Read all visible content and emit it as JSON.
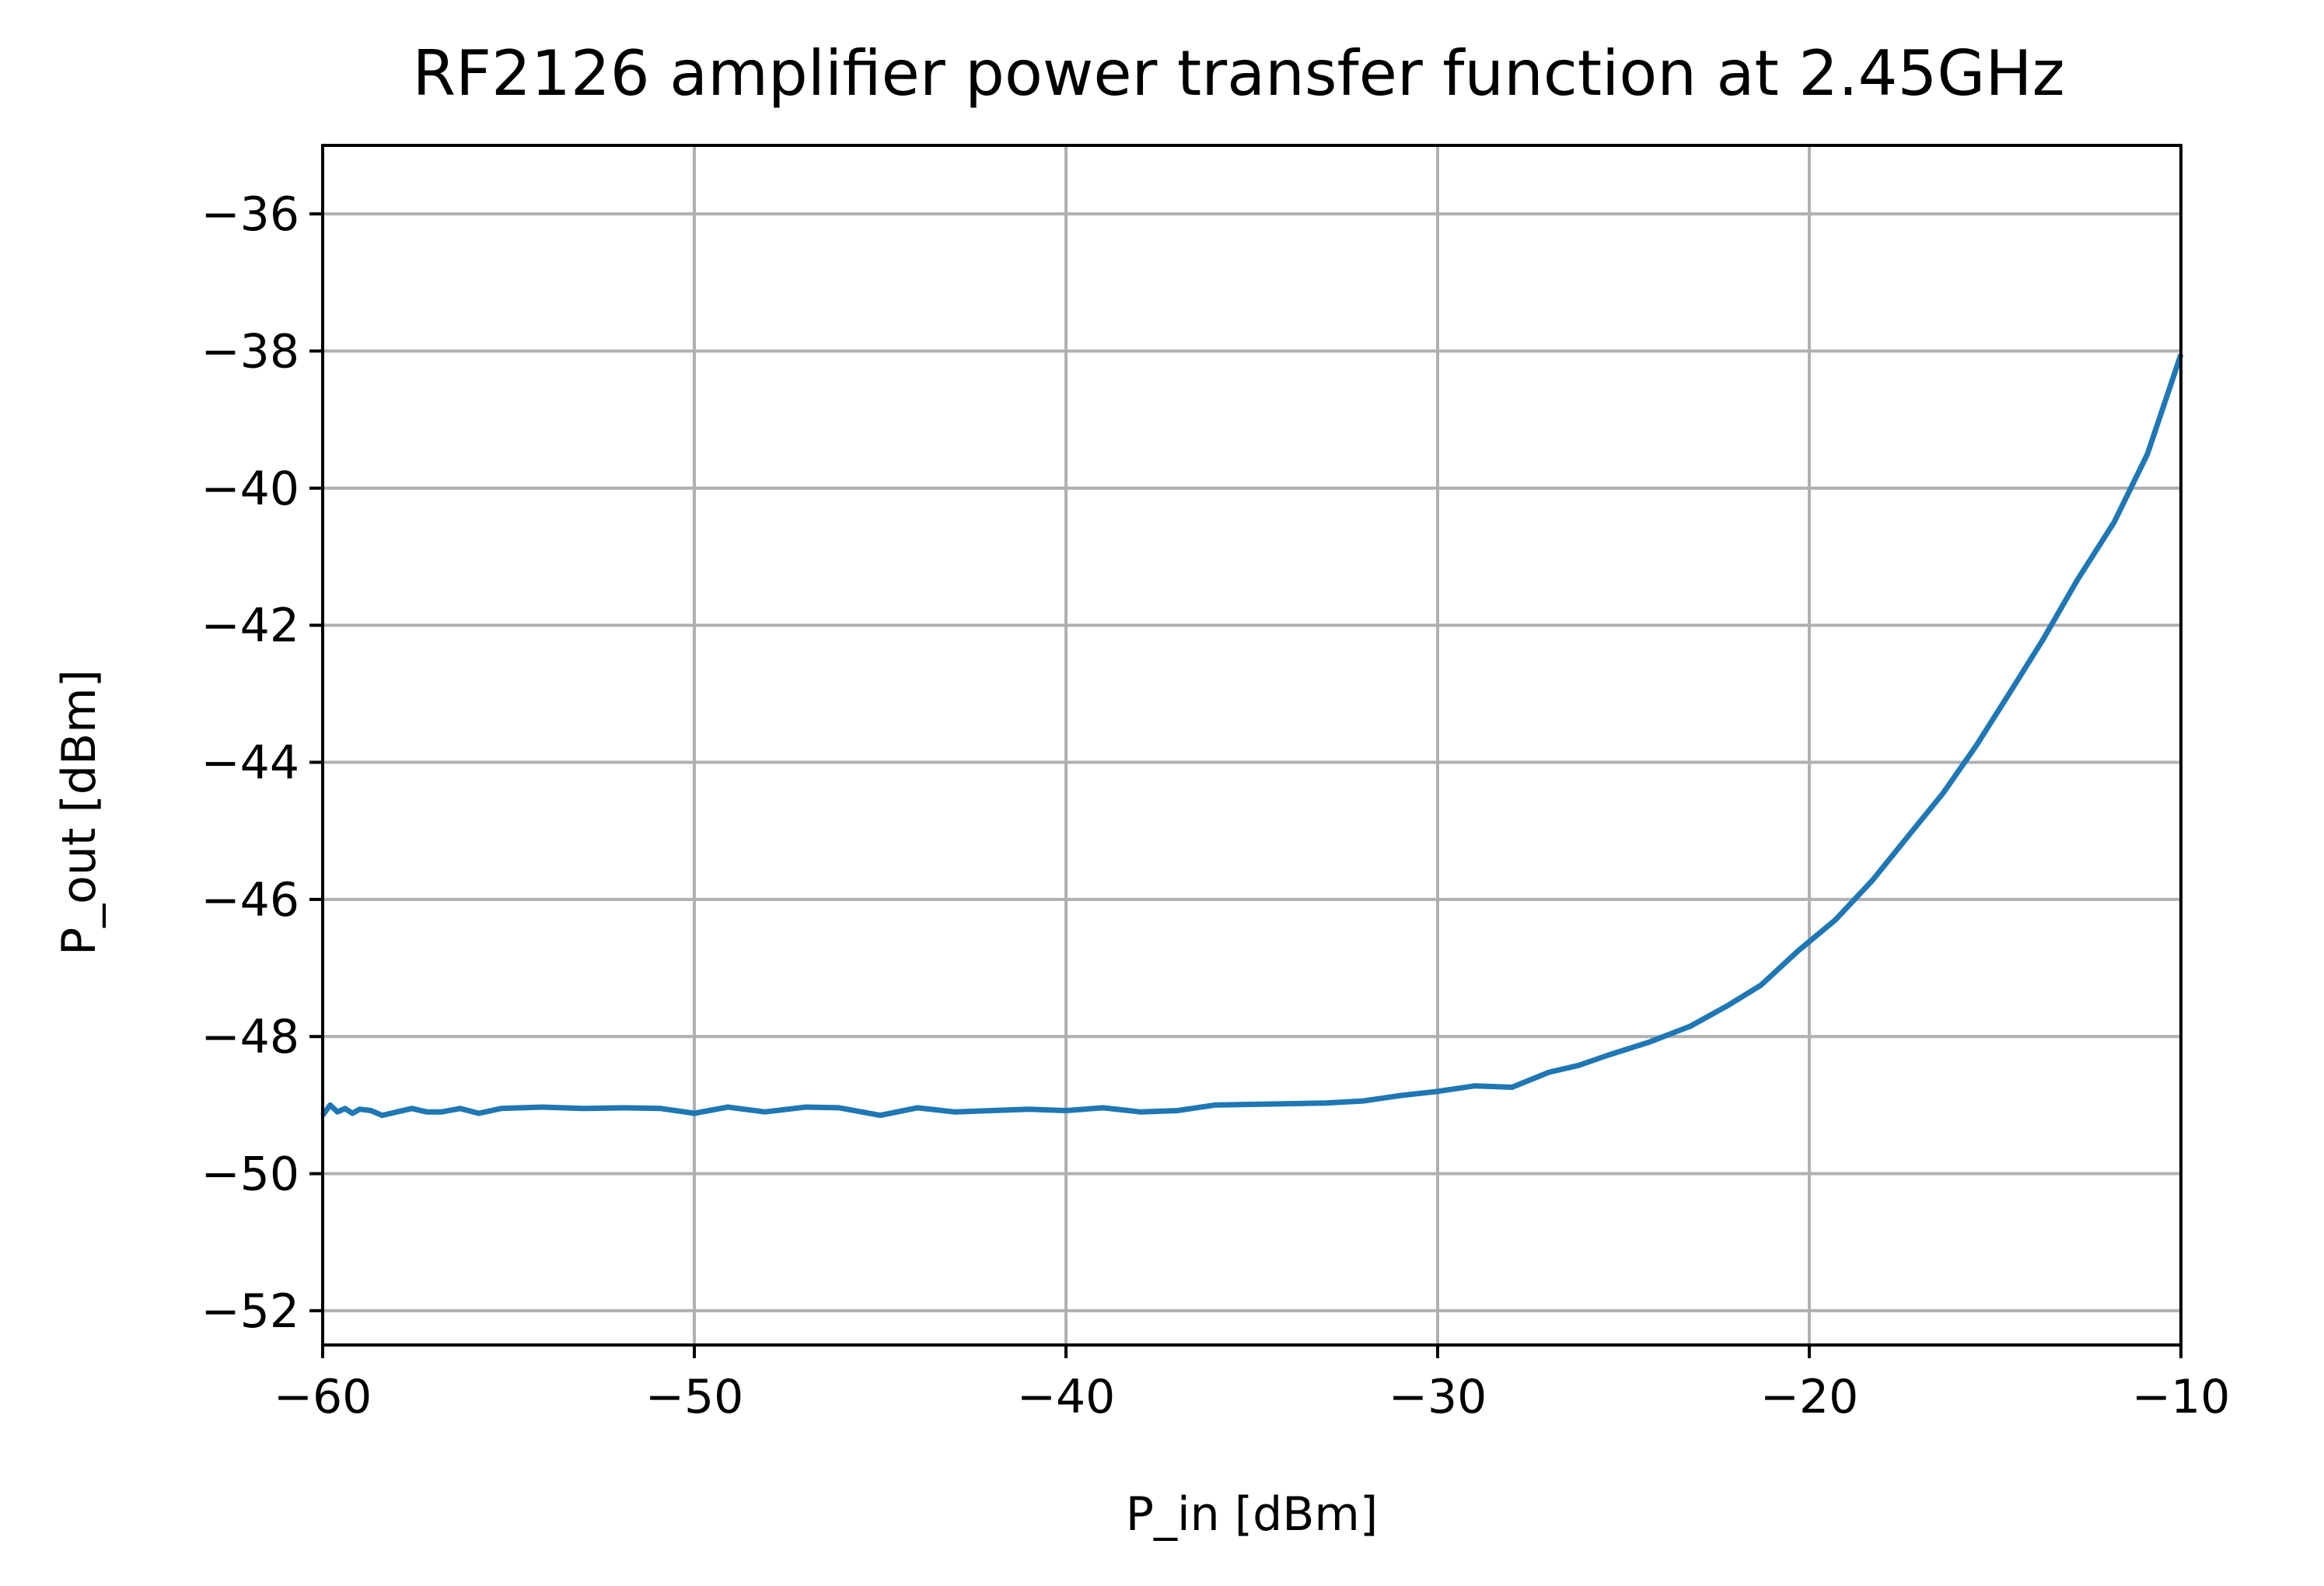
{
  "chart_data": {
    "type": "line",
    "title": "RF2126 amplifier power transfer function at 2.45GHz",
    "xlabel": "P_in [dBm]",
    "ylabel": "P_out [dBm]",
    "xlim": [
      -60,
      -10
    ],
    "ylim": [
      -52.5,
      -35
    ],
    "x_ticks": [
      -60,
      -50,
      -40,
      -30,
      -20,
      -10
    ],
    "y_ticks": [
      -52,
      -50,
      -48,
      -46,
      -44,
      -42,
      -40,
      -38,
      -36
    ],
    "grid": true,
    "legend": "none",
    "series_color": "#1f77b4",
    "series": [
      {
        "x": [
          -60,
          -59.8,
          -59.6,
          -59.4,
          -59.2,
          -59,
          -58.7,
          -58.4,
          -58,
          -57.6,
          -57.2,
          -56.8,
          -56.3,
          -55.8,
          -55.2,
          -54.1,
          -53,
          -51.9,
          -50.9,
          -50,
          -49.1,
          -48.1,
          -47,
          -46.1,
          -45,
          -44,
          -43,
          -42,
          -41,
          -40,
          -39,
          -38,
          -37,
          -36,
          -35,
          -34,
          -33,
          -32,
          -31,
          -30,
          -29,
          -28,
          -27,
          -26.2,
          -25.4,
          -24.3,
          -23.2,
          -22.2,
          -21.3,
          -20.3,
          -19.3,
          -18.3,
          -17.3,
          -16.4,
          -15.5,
          -14.6,
          -13.7,
          -12.8,
          -11.8,
          -10.9,
          -10
        ],
        "y": [
          -49.15,
          -49.0,
          -49.1,
          -49.05,
          -49.12,
          -49.06,
          -49.08,
          -49.15,
          -49.1,
          -49.05,
          -49.1,
          -49.1,
          -49.05,
          -49.12,
          -49.05,
          -49.03,
          -49.05,
          -49.04,
          -49.05,
          -49.12,
          -49.03,
          -49.1,
          -49.03,
          -49.04,
          -49.15,
          -49.04,
          -49.1,
          -49.08,
          -49.06,
          -49.08,
          -49.04,
          -49.1,
          -49.08,
          -49.0,
          -48.99,
          -48.98,
          -48.97,
          -48.94,
          -48.86,
          -48.8,
          -48.72,
          -48.74,
          -48.52,
          -48.42,
          -48.27,
          -48.08,
          -47.85,
          -47.55,
          -47.25,
          -46.75,
          -46.3,
          -45.72,
          -45.05,
          -44.45,
          -43.75,
          -42.98,
          -42.2,
          -41.35,
          -40.5,
          -39.5,
          -38.05
        ]
      }
    ]
  }
}
